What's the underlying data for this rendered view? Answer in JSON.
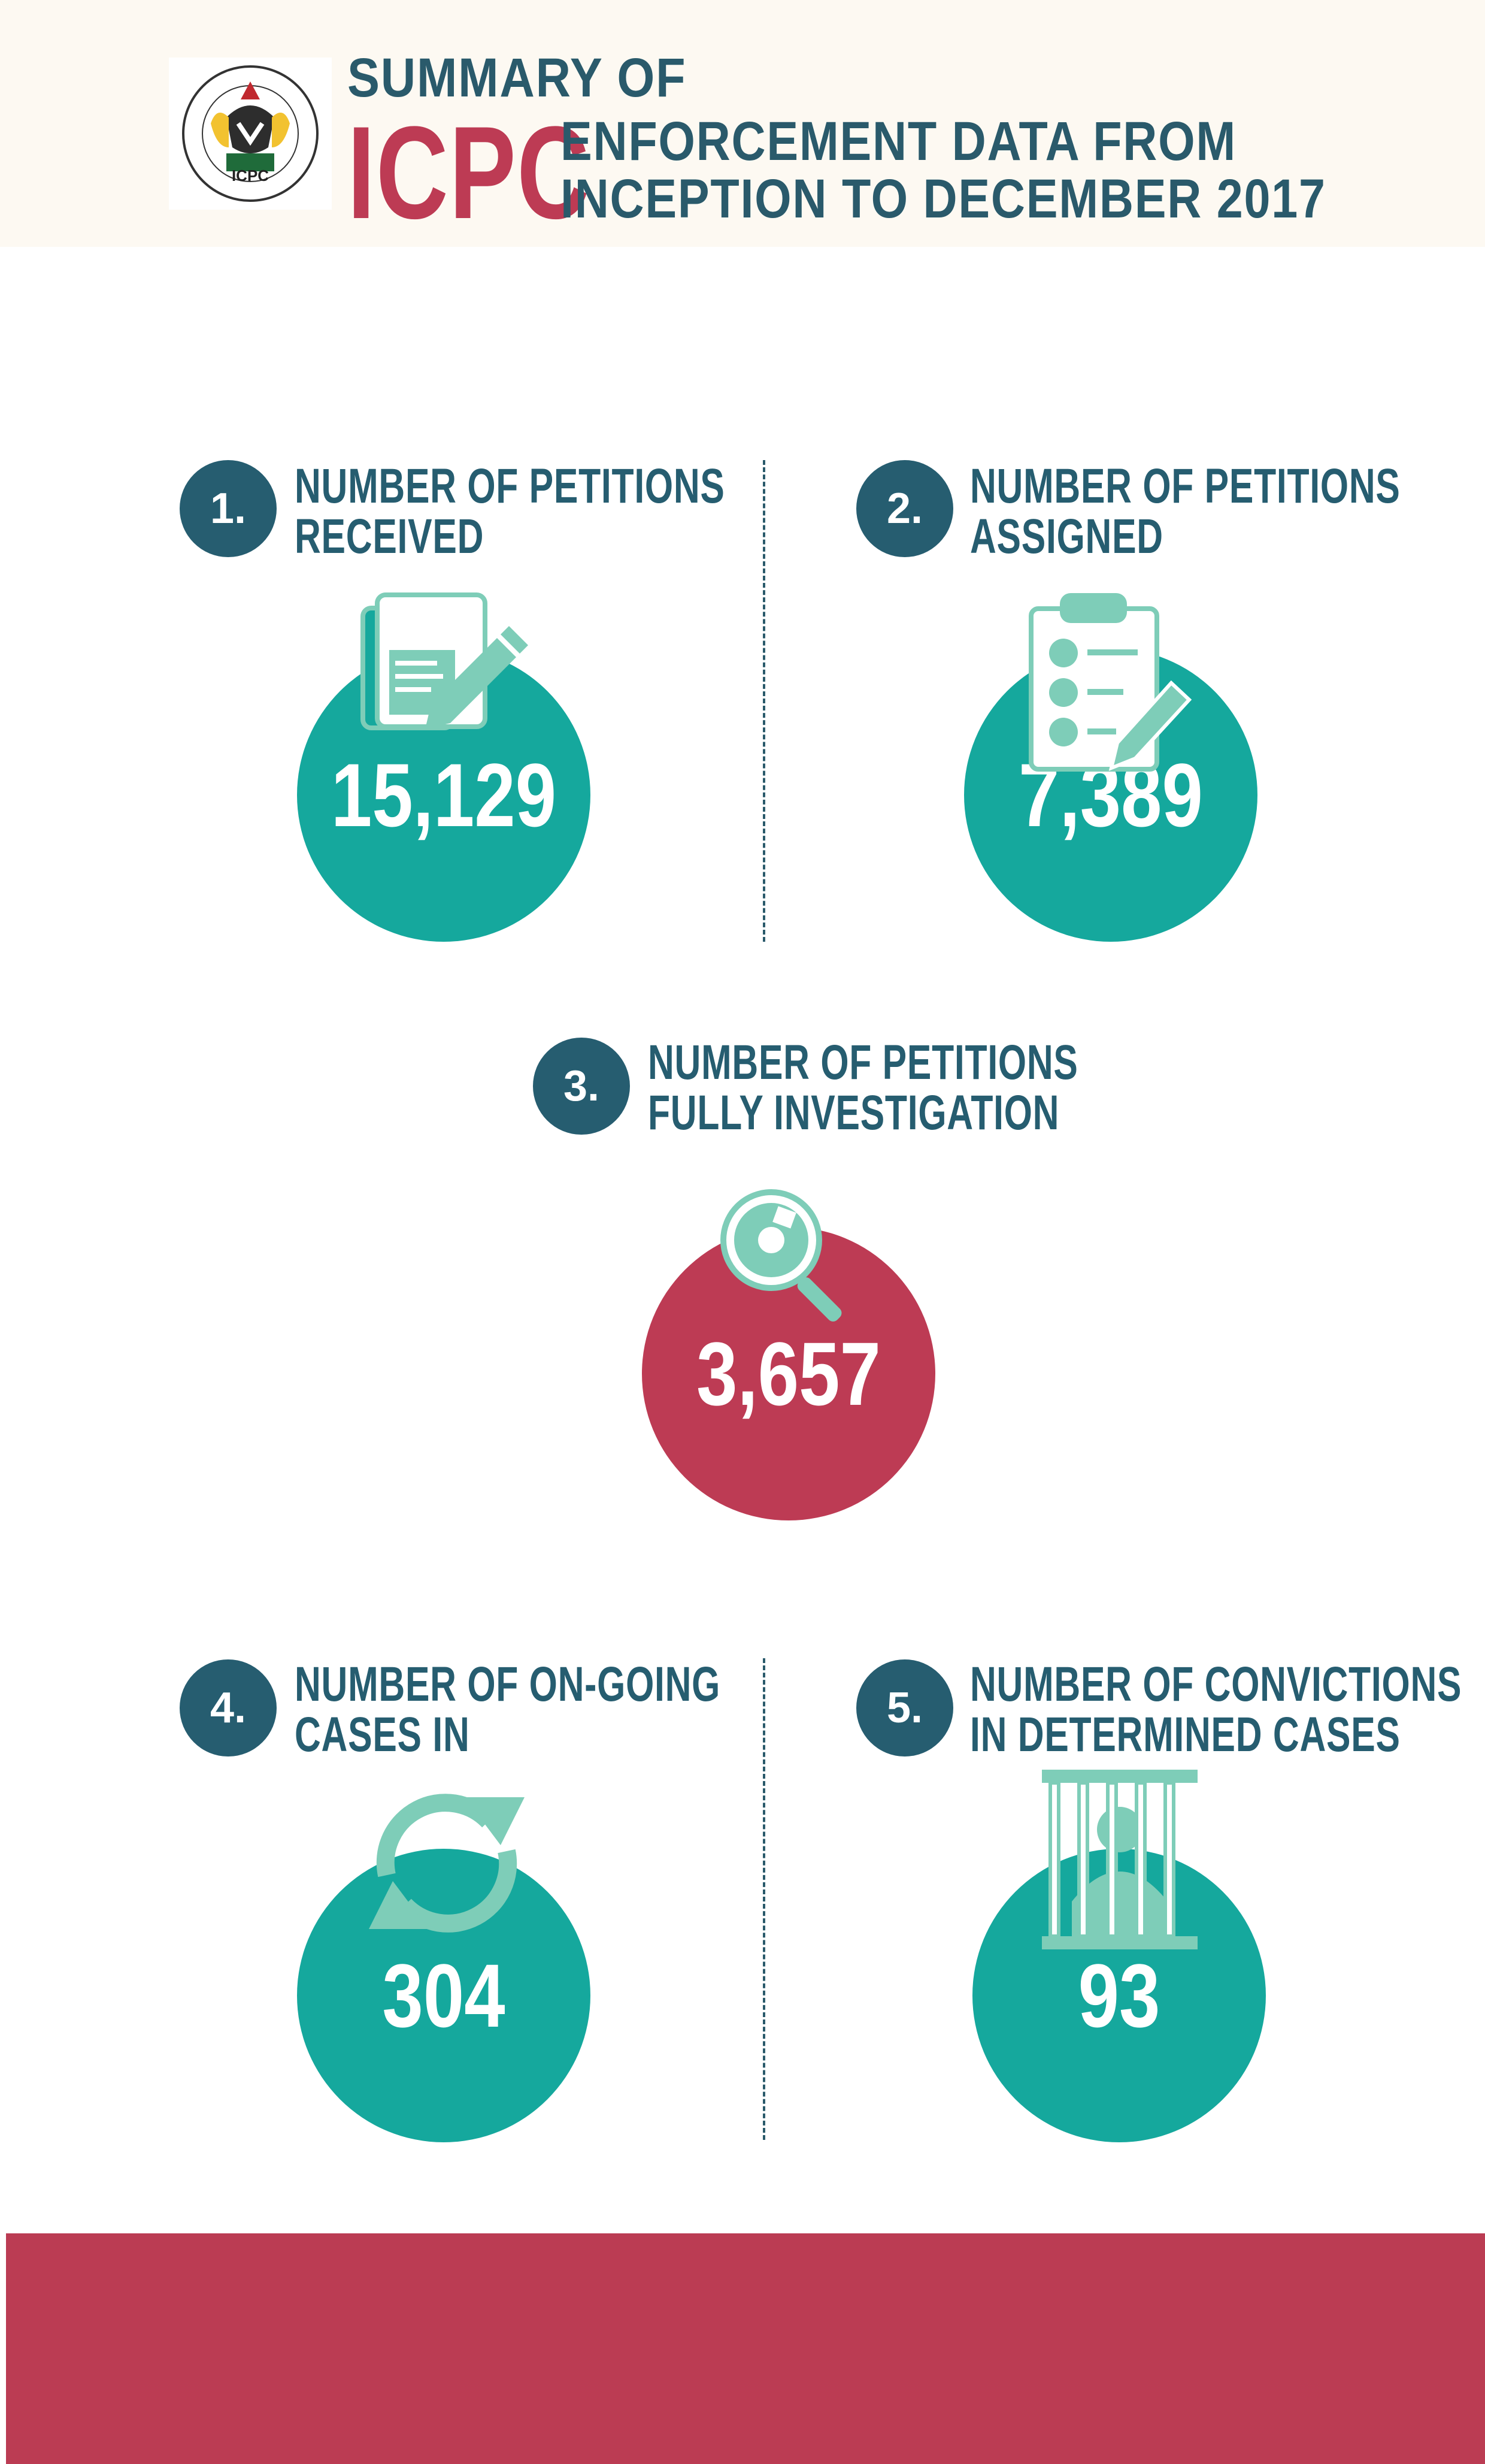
{
  "header": {
    "logo_alt": "ICPC",
    "title_line1": "SUMMARY OF",
    "title_org": "ICPC",
    "title_line2": "ENFORCEMENT DATA FROM",
    "title_line3": "INCEPTION TO DECEMBER 2017",
    "logo_text": "ICPC",
    "logo_ring_text": "INDEPENDENT CORRUPT PRACTICES & OTHER RELATED OFFENCES COMMISSION"
  },
  "colors": {
    "navy": "#265d70",
    "teal": "#15a89d",
    "mint": "#7ecdb8",
    "red": "#bd3b54",
    "cream": "#fdf9f2"
  },
  "stats": [
    {
      "number": "1.",
      "label_line1": "NUMBER OF PETITIONS",
      "label_line2": "RECEIVED",
      "value": "15,129",
      "icon": "document-pen-icon",
      "color": "teal"
    },
    {
      "number": "2.",
      "label_line1": "NUMBER OF PETITIONS",
      "label_line2": "ASSIGNED",
      "value": "7,389",
      "icon": "clipboard-checklist-icon",
      "color": "teal"
    },
    {
      "number": "3.",
      "label_line1": "NUMBER OF PETITIONS",
      "label_line2": "FULLY INVESTIGATION",
      "value": "3,657",
      "icon": "magnifier-icon",
      "color": "red"
    },
    {
      "number": "4.",
      "label_line1": "NUMBER OF ON-GOING",
      "label_line2": "CASES IN",
      "value": "304",
      "icon": "refresh-arrows-icon",
      "color": "teal"
    },
    {
      "number": "5.",
      "label_line1": "NUMBER OF CONVICTIONS",
      "label_line2": "IN DETERMINED CASES",
      "value": "93",
      "icon": "prison-bars-icon",
      "color": "teal"
    }
  ]
}
